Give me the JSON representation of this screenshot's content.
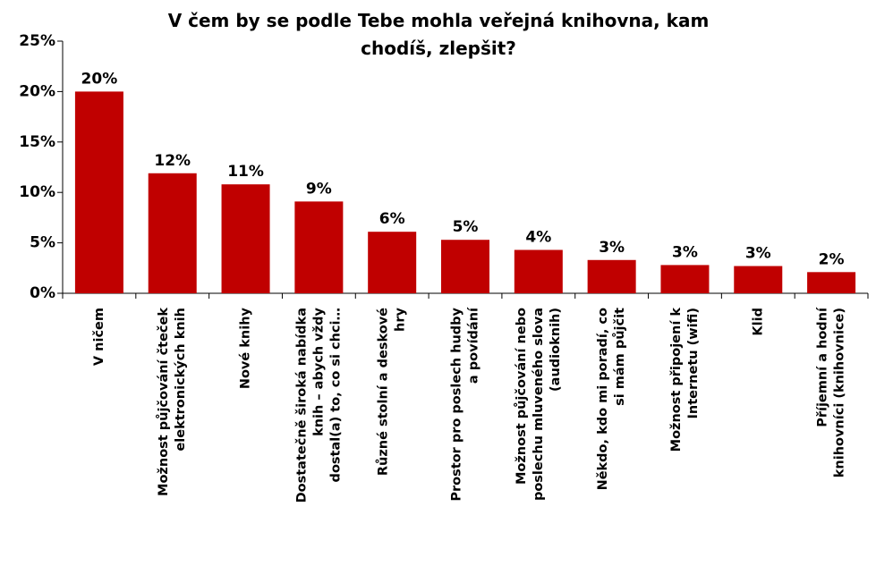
{
  "chart_data": {
    "type": "bar",
    "title": [
      "V čem by se podle Tebe mohla veřejná knihovna, kam",
      "chodíš, zlepšit?"
    ],
    "categories": [
      [
        "V ničem"
      ],
      [
        "Možnost půjčování čteček",
        "elektronických knih"
      ],
      [
        "Nové knihy"
      ],
      [
        "Dostatečně široká nabídka",
        "knih – abych vždy",
        "dostal(a) to, co si chci…"
      ],
      [
        "Různé stolní a deskové",
        "hry"
      ],
      [
        "Prostor pro poslech hudby",
        "a povídání"
      ],
      [
        "Možnost půjčování nebo",
        "poslechu mluveného slova",
        "(audioknih)"
      ],
      [
        "Někdo, kdo mi poradí, co",
        "si mám půjčit"
      ],
      [
        "Možnost připojení k",
        "Internetu (wifi)"
      ],
      [
        "Klid"
      ],
      [
        "Příjemní a hodní",
        "knihovníci (knihovnice)"
      ]
    ],
    "values": [
      20,
      11.9,
      10.8,
      9.1,
      6.1,
      5.3,
      4.3,
      3.3,
      2.8,
      2.7,
      2.1
    ],
    "value_labels": [
      "20%",
      "12%",
      "11%",
      "9%",
      "6%",
      "5%",
      "4%",
      "3%",
      "3%",
      "3%",
      "2%"
    ],
    "color": "#c00000",
    "ylim": [
      0,
      25
    ],
    "yticks": [
      {
        "value": 0,
        "label": "0%"
      },
      {
        "value": 5,
        "label": "5%"
      },
      {
        "value": 10,
        "label": "10%"
      },
      {
        "value": 15,
        "label": "15%"
      },
      {
        "value": 20,
        "label": "20%"
      },
      {
        "value": 25,
        "label": "25%"
      }
    ],
    "grid": false
  }
}
